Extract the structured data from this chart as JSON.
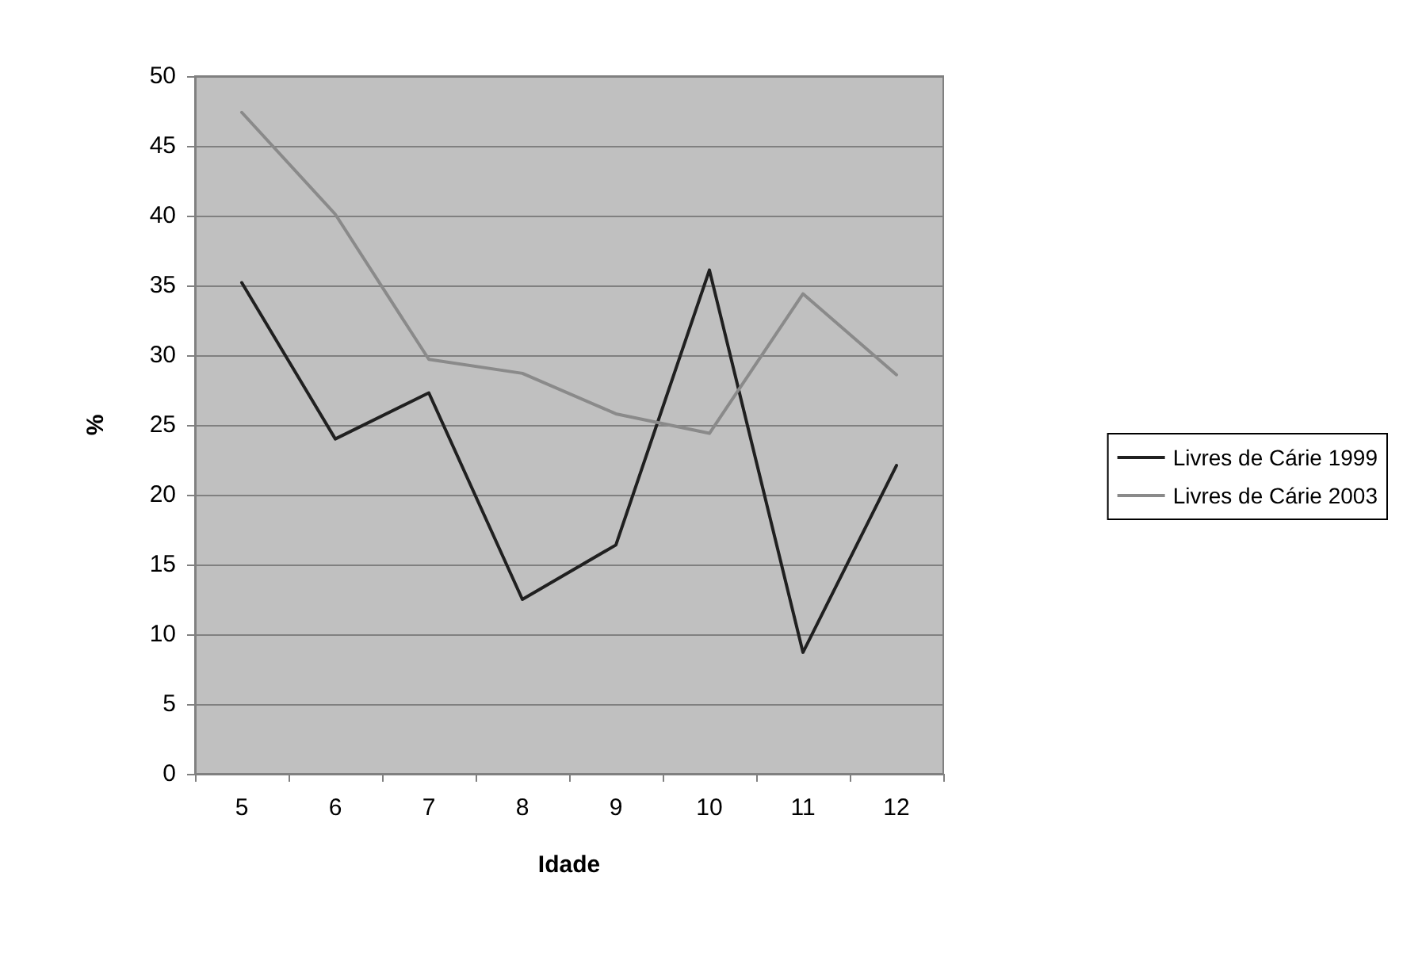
{
  "chart_data": {
    "type": "line",
    "xlabel": "Idade",
    "ylabel": "%",
    "categories": [
      "5",
      "6",
      "7",
      "8",
      "9",
      "10",
      "11",
      "12"
    ],
    "series": [
      {
        "name": "Livres de Cárie 1999",
        "color": "#202020",
        "values": [
          35.2,
          24.0,
          27.3,
          12.5,
          16.4,
          36.1,
          8.7,
          22.1
        ]
      },
      {
        "name": "Livres de Cárie 2003",
        "color": "#8a8a8a",
        "values": [
          47.4,
          40.1,
          29.7,
          28.7,
          25.8,
          24.4,
          34.4,
          28.6
        ]
      }
    ],
    "ylim": [
      0,
      50
    ],
    "yticks": [
      0,
      5,
      10,
      15,
      20,
      25,
      30,
      35,
      40,
      45,
      50
    ],
    "grid": "y",
    "legend": "right",
    "marker": "none",
    "line_style": "solid"
  }
}
